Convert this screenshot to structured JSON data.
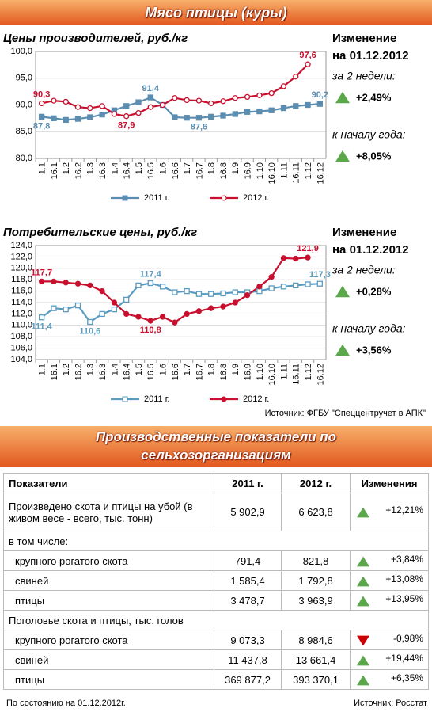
{
  "header": {
    "title": "Мясо птицы (куры)"
  },
  "chart_data": [
    {
      "type": "line",
      "title": "Цены производителей, руб./кг",
      "categories": [
        "1.1",
        "16.1",
        "1.2",
        "16.2",
        "1.3",
        "16.3",
        "1.4",
        "16.4",
        "1.5",
        "16.5",
        "1.6",
        "16.6",
        "1.7",
        "16.7",
        "1.8",
        "16.8",
        "1.9",
        "16.9",
        "1.10",
        "16.10",
        "1.11",
        "16.11",
        "1.12",
        "16.12"
      ],
      "series": [
        {
          "name": "2011 г.",
          "color": "#5b8db0",
          "marker": "square",
          "values": [
            87.8,
            87.5,
            87.2,
            87.4,
            87.7,
            88.2,
            89.0,
            89.8,
            90.5,
            91.4,
            90.0,
            87.7,
            87.6,
            87.6,
            87.8,
            88.0,
            88.3,
            88.7,
            88.8,
            89.0,
            89.4,
            89.8,
            90.0,
            90.2
          ],
          "value_labels": [
            "87,8",
            null,
            null,
            null,
            null,
            null,
            null,
            null,
            null,
            "91,4",
            null,
            null,
            null,
            "87,6",
            null,
            null,
            null,
            null,
            null,
            null,
            null,
            null,
            null,
            "90,2"
          ]
        },
        {
          "name": "2012 г.",
          "color": "#c8102e",
          "marker": "circle-open",
          "values": [
            90.3,
            90.8,
            90.6,
            89.6,
            89.4,
            89.8,
            88.3,
            87.9,
            88.5,
            89.6,
            90.0,
            91.3,
            90.9,
            90.8,
            90.3,
            90.7,
            91.3,
            91.5,
            91.8,
            92.2,
            93.5,
            95.3,
            97.6,
            null
          ],
          "value_labels": [
            "90,3",
            null,
            null,
            null,
            null,
            null,
            null,
            "87,9",
            null,
            null,
            null,
            null,
            null,
            null,
            null,
            null,
            null,
            null,
            null,
            null,
            null,
            null,
            "97,6",
            null
          ]
        }
      ],
      "ylim": [
        80,
        100
      ],
      "yticks": [
        {
          "value": 80,
          "label": "80,0"
        },
        {
          "value": 85,
          "label": "85,0"
        },
        {
          "value": 90,
          "label": "90,0"
        },
        {
          "value": 95,
          "label": "95,0"
        },
        {
          "value": 100,
          "label": "100,0"
        }
      ],
      "grid": true,
      "legend": "bottom"
    },
    {
      "type": "line",
      "title": "Потребительские цены, руб./кг",
      "categories": [
        "1.1",
        "16.1",
        "1.2",
        "16.2",
        "1.3",
        "16.3",
        "1.4",
        "16.4",
        "1.5",
        "16.5",
        "1.6",
        "16.6",
        "1.7",
        "16.7",
        "1.8",
        "16.8",
        "1.9",
        "16.9",
        "1.10",
        "16.10",
        "1.11",
        "16.11",
        "1.12",
        "16.12"
      ],
      "series": [
        {
          "name": "2011 г.",
          "color": "#5b9bc0",
          "marker": "square-open",
          "values": [
            111.4,
            113.0,
            112.8,
            113.5,
            110.6,
            112.0,
            112.8,
            114.5,
            117.0,
            117.4,
            116.8,
            115.8,
            116.0,
            115.5,
            115.5,
            115.6,
            115.8,
            115.8,
            116.0,
            116.5,
            116.8,
            117.0,
            117.2,
            117.3
          ],
          "value_labels": [
            "111,4",
            null,
            null,
            null,
            "110,6",
            null,
            null,
            null,
            null,
            "117,4",
            null,
            null,
            null,
            null,
            null,
            null,
            null,
            null,
            null,
            null,
            null,
            null,
            null,
            "117,3"
          ]
        },
        {
          "name": "2012 г.",
          "color": "#c8102e",
          "marker": "circle",
          "values": [
            117.7,
            117.7,
            117.5,
            117.3,
            117.0,
            116.0,
            114.0,
            112.0,
            111.5,
            110.8,
            111.5,
            110.5,
            112.0,
            112.5,
            113.0,
            113.3,
            114.0,
            115.3,
            116.8,
            118.5,
            121.8,
            121.7,
            121.9,
            null
          ],
          "value_labels": [
            "117,7",
            null,
            null,
            null,
            null,
            null,
            null,
            null,
            null,
            "110,8",
            null,
            null,
            null,
            null,
            null,
            null,
            null,
            null,
            null,
            null,
            null,
            null,
            "121,9",
            null
          ]
        }
      ],
      "ylim": [
        104,
        124
      ],
      "yticks": [
        {
          "value": 104,
          "label": "104,0"
        },
        {
          "value": 106,
          "label": "106,0"
        },
        {
          "value": 108,
          "label": "108,0"
        },
        {
          "value": 110,
          "label": "110,0"
        },
        {
          "value": 112,
          "label": "112,0"
        },
        {
          "value": 114,
          "label": "114,0"
        },
        {
          "value": 116,
          "label": "116,0"
        },
        {
          "value": 118,
          "label": "118,0"
        },
        {
          "value": 120,
          "label": "120,0"
        },
        {
          "value": 122,
          "label": "122,0"
        },
        {
          "value": 124,
          "label": "124,0"
        }
      ],
      "grid": true,
      "legend": "bottom"
    }
  ],
  "panels": [
    {
      "heading": [
        "Изменение",
        "на 01.12.2012"
      ],
      "items": [
        {
          "label": "за 2 недели:",
          "value": "+2,49%",
          "trend": "up"
        },
        {
          "label": "к началу года:",
          "value": "+8,05%",
          "trend": "up"
        }
      ]
    },
    {
      "heading": [
        "Изменение",
        "на 01.12.2012"
      ],
      "items": [
        {
          "label": "за 2 недели:",
          "value": "+0,28%",
          "trend": "up"
        },
        {
          "label": "к началу года:",
          "value": "+3,56%",
          "trend": "up"
        }
      ]
    }
  ],
  "source": "Источник: ФГБУ \"Спеццентручет в АПК\"",
  "section": {
    "title": [
      "Производственные показатели по",
      "сельхозорганизациям"
    ]
  },
  "table": {
    "header": [
      "Показатели",
      "2011 г.",
      "2012 г.",
      "Изменения"
    ],
    "rows": [
      {
        "label": "Произведено скота и птицы на убой (в живом весе - всего, тыс. тонн)",
        "y2011": "5 902,9",
        "y2012": "6 623,8",
        "change": "+12,21%",
        "trend": "up"
      },
      {
        "group": "в том числе:"
      },
      {
        "label": "крупного рогатого скота",
        "y2011": "791,4",
        "y2012": "821,8",
        "change": "+3,84%",
        "trend": "up"
      },
      {
        "label": "свиней",
        "y2011": "1 585,4",
        "y2012": "1 792,8",
        "change": "+13,08%",
        "trend": "up"
      },
      {
        "label": "птицы",
        "y2011": "3 478,7",
        "y2012": "3 963,9",
        "change": "+13,95%",
        "trend": "up"
      },
      {
        "group": "Поголовье скота и птицы, тыс. голов"
      },
      {
        "label": "крупного рогатого скота",
        "y2011": "9 073,3",
        "y2012": "8 984,6",
        "change": "-0,98%",
        "trend": "down"
      },
      {
        "label": "свиней",
        "y2011": "11 437,8",
        "y2012": "13 661,4",
        "change": "+19,44%",
        "trend": "up"
      },
      {
        "label": "птицы",
        "y2011": "369 877,2",
        "y2012": "393 370,1",
        "change": "+6,35%",
        "trend": "up"
      }
    ]
  },
  "footer": {
    "note": "По состоянию на 01.12.2012г.",
    "source": "Источник: Росстат"
  }
}
